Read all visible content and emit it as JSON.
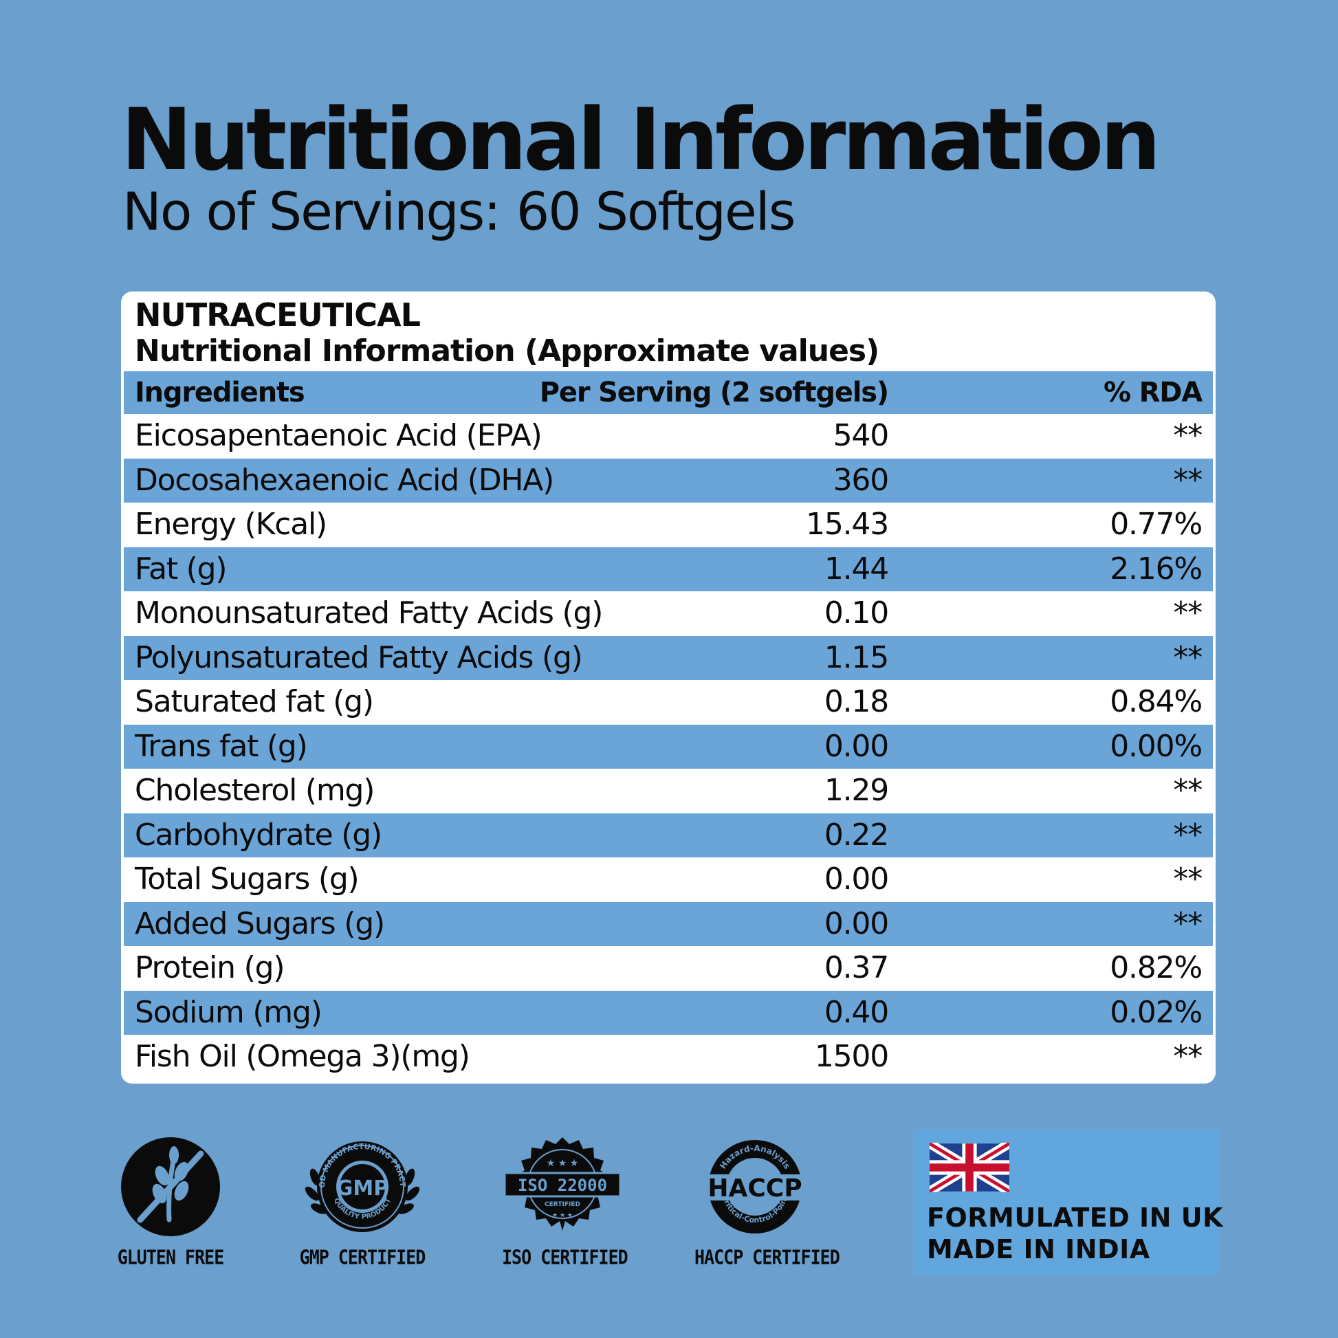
{
  "header": {
    "title": "Nutritional Information",
    "servings_label": "No of Servings:",
    "servings_value": "60 Softgels"
  },
  "panel": {
    "brand": "NUTRACEUTICAL",
    "subtitle": "Nutritional Information (Approximate values)",
    "columns": [
      "Ingredients",
      "Per Serving (2 softgels)",
      "% RDA"
    ],
    "rows": [
      {
        "name": "Eicosapentaenoic Acid (EPA)",
        "serving": "540",
        "rda": "**"
      },
      {
        "name": "Docosahexaenoic Acid (DHA)",
        "serving": "360",
        "rda": "**"
      },
      {
        "name": "Energy (Kcal)",
        "serving": "15.43",
        "rda": "0.77%"
      },
      {
        "name": "Fat (g)",
        "serving": "1.44",
        "rda": "2.16%"
      },
      {
        "name": "Monounsaturated Fatty Acids (g)",
        "serving": "0.10",
        "rda": "**"
      },
      {
        "name": "Polyunsaturated Fatty Acids (g)",
        "serving": "1.15",
        "rda": "**"
      },
      {
        "name": "Saturated fat (g)",
        "serving": "0.18",
        "rda": "0.84%"
      },
      {
        "name": "Trans fat (g)",
        "serving": "0.00",
        "rda": "0.00%"
      },
      {
        "name": "Cholesterol (mg)",
        "serving": "1.29",
        "rda": "**"
      },
      {
        "name": "Carbohydrate (g)",
        "serving": "0.22",
        "rda": "**"
      },
      {
        "name": "Total Sugars (g)",
        "serving": "0.00",
        "rda": "**"
      },
      {
        "name": "Added Sugars (g)",
        "serving": "0.00",
        "rda": "**"
      },
      {
        "name": "Protein (g)",
        "serving": "0.37",
        "rda": "0.82%"
      },
      {
        "name": "Sodium (mg)",
        "serving": "0.40",
        "rda": "0.02%"
      },
      {
        "name": "Fish Oil (Omega 3)(mg)",
        "serving": "1500",
        "rda": "**"
      }
    ]
  },
  "badges": [
    {
      "icon": "gluten-free-icon",
      "label": "GLUTEN FREE"
    },
    {
      "icon": "gmp-seal-icon",
      "label": "GMP CERTIFIED",
      "seal_text": "GMP",
      "ring_top": "GOOD MANUFACTURING PRACTICE",
      "ring_bottom": "QUALITY PRODUCT"
    },
    {
      "icon": "iso-seal-icon",
      "label": "ISO CERTIFIED",
      "seal_text": "ISO 22000",
      "seal_sub": "CERTIFIED"
    },
    {
      "icon": "haccp-seal-icon",
      "label": "HACCP CERTIFIED",
      "seal_text": "HACCP",
      "ring_top": "Hazard-Analysis",
      "ring_bottom": "Critical-Control-Point"
    }
  ],
  "origin": {
    "icon": "uk-flag-icon",
    "line1": "FORMULATED IN UK",
    "line2": "MADE IN INDIA"
  },
  "colors": {
    "background": "#6b9fcd",
    "row_stripe": "#6ba5d8",
    "card": "#ffffff",
    "text": "#0b0b0b"
  }
}
